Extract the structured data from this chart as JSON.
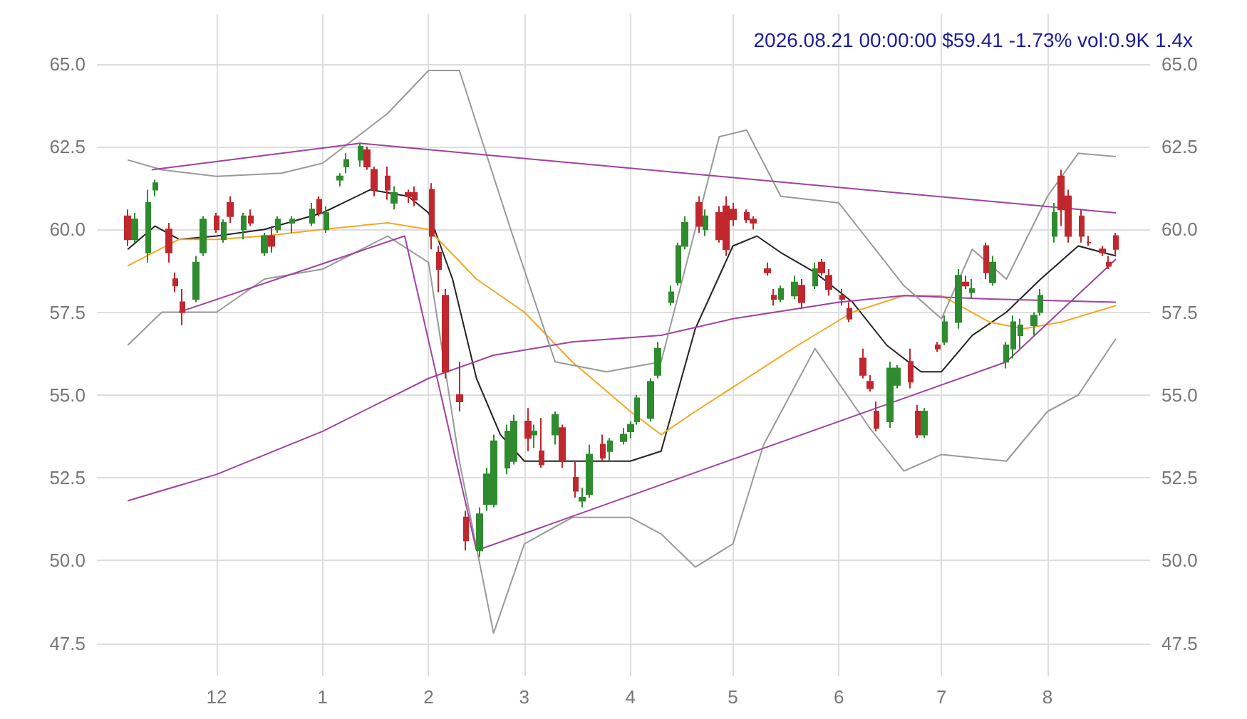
{
  "chart_data": {
    "type": "candlestick",
    "title": "2026.08.21 00:00:00 $59.41 -1.73% vol:0.9K 1.4x",
    "x": [
      "2025-11-05",
      "2025-11-07",
      "2025-11-11",
      "2025-11-13",
      "2025-11-17",
      "2025-11-19",
      "2025-11-21",
      "2025-11-25",
      "2025-11-27",
      "2025-12-01",
      "2025-12-03",
      "2025-12-05",
      "2025-12-09",
      "2025-12-11",
      "2025-12-15",
      "2025-12-17",
      "2025-12-19",
      "2025-12-23",
      "2025-12-29",
      "2025-12-31",
      "2026-01-02",
      "2026-01-06",
      "2026-01-08",
      "2026-01-12",
      "2026-01-14",
      "2026-01-16",
      "2026-01-20",
      "2026-01-22",
      "2026-01-26",
      "2026-01-28",
      "2026-02-02",
      "2026-02-04",
      "2026-02-06",
      "2026-02-10",
      "2026-02-12",
      "2026-02-16",
      "2026-02-18",
      "2026-02-20",
      "2026-02-24",
      "2026-02-26",
      "2026-03-02",
      "2026-03-04",
      "2026-03-06",
      "2026-03-10",
      "2026-03-12",
      "2026-03-16",
      "2026-03-18",
      "2026-03-20",
      "2026-03-24",
      "2026-03-26",
      "2026-03-30",
      "2026-04-01",
      "2026-04-03",
      "2026-04-07",
      "2026-04-09",
      "2026-04-13",
      "2026-04-15",
      "2026-04-17",
      "2026-04-21",
      "2026-04-23",
      "2026-04-27",
      "2026-04-29",
      "2026-05-01",
      "2026-05-05",
      "2026-05-07",
      "2026-05-11",
      "2026-05-13",
      "2026-05-15",
      "2026-05-19",
      "2026-05-21",
      "2026-05-25",
      "2026-05-27",
      "2026-05-29",
      "2026-06-02",
      "2026-06-04",
      "2026-06-08",
      "2026-06-10",
      "2026-06-12",
      "2026-06-16",
      "2026-06-18",
      "2026-06-22",
      "2026-06-24",
      "2026-06-26",
      "2026-06-30",
      "2026-07-02",
      "2026-07-06",
      "2026-07-08",
      "2026-07-10",
      "2026-07-14",
      "2026-07-16",
      "2026-07-20",
      "2026-07-22",
      "2026-07-24",
      "2026-07-28",
      "2026-07-30",
      "2026-08-03",
      "2026-08-05",
      "2026-08-07",
      "2026-08-11",
      "2026-08-13",
      "2026-08-17",
      "2026-08-19",
      "2026-08-21"
    ],
    "ohlc": [
      [
        60.4,
        60.6,
        59.5,
        59.7
      ],
      [
        59.7,
        60.5,
        59.6,
        60.3
      ],
      [
        59.3,
        61.2,
        59.0,
        60.8
      ],
      [
        61.2,
        61.5,
        61.0,
        61.4
      ],
      [
        60.0,
        60.2,
        59.0,
        59.3
      ],
      [
        58.5,
        58.7,
        58.1,
        58.3
      ],
      [
        57.8,
        58.2,
        57.1,
        57.5
      ],
      [
        57.9,
        59.2,
        57.8,
        59.0
      ],
      [
        59.3,
        60.4,
        59.2,
        60.3
      ],
      [
        60.4,
        60.5,
        59.9,
        60.0
      ],
      [
        59.7,
        60.3,
        59.6,
        60.2
      ],
      [
        60.8,
        61.0,
        60.2,
        60.4
      ],
      [
        60.0,
        60.5,
        59.7,
        60.4
      ],
      [
        60.4,
        60.6,
        60.1,
        60.2
      ],
      [
        59.3,
        59.9,
        59.2,
        59.8
      ],
      [
        59.8,
        60.1,
        59.3,
        59.5
      ],
      [
        60.0,
        60.4,
        59.9,
        60.3
      ],
      [
        60.2,
        60.4,
        59.9,
        60.3
      ],
      [
        60.2,
        60.8,
        60.1,
        60.6
      ],
      [
        60.9,
        61.0,
        60.4,
        60.5
      ],
      [
        60.0,
        60.7,
        59.9,
        60.5
      ],
      [
        61.5,
        61.7,
        61.3,
        61.6
      ],
      [
        61.9,
        62.3,
        61.7,
        62.1
      ],
      [
        62.1,
        62.6,
        61.9,
        62.5
      ],
      [
        62.4,
        62.5,
        61.8,
        61.9
      ],
      [
        61.8,
        61.9,
        61.0,
        61.2
      ],
      [
        61.6,
        61.9,
        60.9,
        61.2
      ],
      [
        60.8,
        61.3,
        60.6,
        61.1
      ],
      [
        61.1,
        61.2,
        60.8,
        61.0
      ],
      [
        61.1,
        61.3,
        60.7,
        60.9
      ],
      [
        61.2,
        61.4,
        59.4,
        59.8
      ],
      [
        59.3,
        59.5,
        58.1,
        58.8
      ],
      [
        58.0,
        58.2,
        55.5,
        55.7
      ],
      [
        55.0,
        56.0,
        54.5,
        54.8
      ],
      [
        51.3,
        51.5,
        50.3,
        50.6
      ],
      [
        50.3,
        51.6,
        50.1,
        51.4
      ],
      [
        51.7,
        52.8,
        51.5,
        52.6
      ],
      [
        51.7,
        53.8,
        51.6,
        53.6
      ],
      [
        52.8,
        54.1,
        52.6,
        53.9
      ],
      [
        53.0,
        54.4,
        52.9,
        54.2
      ],
      [
        54.2,
        54.6,
        53.3,
        53.7
      ],
      [
        53.8,
        54.1,
        53.4,
        53.9
      ],
      [
        53.3,
        54.3,
        52.8,
        52.9
      ],
      [
        53.8,
        54.5,
        53.5,
        54.4
      ],
      [
        54.0,
        54.1,
        52.8,
        53.0
      ],
      [
        52.5,
        53.0,
        51.9,
        52.1
      ],
      [
        51.8,
        52.2,
        51.6,
        51.9
      ],
      [
        52.0,
        53.5,
        51.9,
        53.2
      ],
      [
        53.5,
        53.8,
        53.0,
        53.1
      ],
      [
        53.3,
        53.7,
        53.0,
        53.6
      ],
      [
        53.6,
        54.0,
        53.5,
        53.8
      ],
      [
        53.9,
        54.2,
        53.7,
        54.1
      ],
      [
        54.2,
        55.0,
        54.1,
        54.9
      ],
      [
        54.3,
        55.5,
        54.2,
        55.4
      ],
      [
        55.6,
        56.6,
        55.5,
        56.4
      ],
      [
        57.8,
        58.3,
        57.7,
        58.1
      ],
      [
        58.4,
        59.6,
        58.3,
        59.5
      ],
      [
        59.5,
        60.4,
        59.4,
        60.2
      ],
      [
        60.8,
        61.0,
        59.9,
        60.1
      ],
      [
        60.0,
        60.6,
        59.8,
        60.4
      ],
      [
        60.5,
        60.7,
        59.6,
        59.7
      ],
      [
        60.7,
        61.0,
        59.2,
        59.4
      ],
      [
        60.6,
        60.8,
        60.1,
        60.3
      ],
      [
        60.5,
        60.6,
        60.2,
        60.3
      ],
      [
        60.3,
        60.4,
        60.0,
        60.2
      ],
      [
        58.8,
        59.0,
        58.6,
        58.7
      ],
      [
        58.0,
        58.2,
        57.7,
        57.9
      ],
      [
        57.9,
        58.3,
        57.8,
        58.2
      ],
      [
        58.0,
        58.6,
        57.9,
        58.4
      ],
      [
        58.3,
        58.5,
        57.6,
        57.8
      ],
      [
        58.3,
        59.0,
        58.2,
        58.8
      ],
      [
        59.0,
        59.1,
        58.6,
        58.7
      ],
      [
        58.6,
        58.8,
        58.0,
        58.2
      ],
      [
        58.0,
        58.2,
        57.7,
        57.9
      ],
      [
        57.6,
        57.8,
        57.2,
        57.3
      ],
      [
        56.1,
        56.4,
        55.5,
        55.6
      ],
      [
        55.4,
        55.6,
        55.1,
        55.2
      ],
      [
        54.5,
        54.8,
        53.9,
        54.0
      ],
      [
        54.2,
        56.0,
        54.0,
        55.8
      ],
      [
        55.3,
        55.9,
        55.2,
        55.8
      ],
      [
        56.0,
        56.4,
        55.2,
        55.4
      ],
      [
        54.5,
        54.7,
        53.7,
        53.8
      ],
      [
        53.8,
        54.6,
        53.7,
        54.5
      ],
      [
        56.5,
        56.6,
        56.3,
        56.4
      ],
      [
        56.6,
        57.4,
        56.5,
        57.2
      ],
      [
        57.2,
        58.8,
        57.0,
        58.6
      ],
      [
        58.4,
        58.6,
        58.2,
        58.3
      ],
      [
        58.1,
        58.5,
        57.9,
        58.2
      ],
      [
        59.5,
        59.6,
        58.5,
        58.7
      ],
      [
        58.4,
        59.2,
        58.3,
        59.0
      ],
      [
        56.0,
        56.6,
        55.8,
        56.5
      ],
      [
        56.4,
        57.4,
        56.1,
        57.2
      ],
      [
        56.8,
        57.3,
        56.4,
        57.1
      ],
      [
        57.1,
        57.5,
        56.8,
        57.4
      ],
      [
        57.5,
        58.2,
        57.4,
        58.0
      ],
      [
        59.8,
        60.8,
        59.6,
        60.5
      ],
      [
        61.6,
        61.8,
        60.1,
        60.6
      ],
      [
        61.0,
        61.2,
        59.6,
        59.8
      ],
      [
        60.4,
        60.6,
        59.6,
        59.8
      ],
      [
        59.6,
        59.8,
        59.5,
        59.6
      ],
      [
        59.4,
        59.5,
        59.2,
        59.3
      ],
      [
        59.0,
        59.2,
        58.8,
        58.9
      ],
      [
        59.8,
        59.9,
        59.2,
        59.41
      ]
    ],
    "series": [
      {
        "type": "line",
        "color": "#222222",
        "x": [
          "2025-11-05",
          "2025-11-13",
          "2025-11-20",
          "2025-12-01",
          "2025-12-15",
          "2026-01-01",
          "2026-01-15",
          "2026-01-26",
          "2026-02-01",
          "2026-02-08",
          "2026-02-15",
          "2026-02-22",
          "2026-03-01",
          "2026-03-15",
          "2026-04-01",
          "2026-04-10",
          "2026-04-20",
          "2026-05-01",
          "2026-05-08",
          "2026-05-15",
          "2026-05-25",
          "2026-06-05",
          "2026-06-15",
          "2026-06-25",
          "2026-07-01",
          "2026-07-10",
          "2026-07-20",
          "2026-07-30",
          "2026-08-10",
          "2026-08-21"
        ],
        "values": [
          59.4,
          60.1,
          59.7,
          59.8,
          60.0,
          60.5,
          61.2,
          61.0,
          60.5,
          58.5,
          55.5,
          53.8,
          53.0,
          53.0,
          53.0,
          53.3,
          57.0,
          59.5,
          59.8,
          59.3,
          58.7,
          57.8,
          56.5,
          55.7,
          55.7,
          56.8,
          57.5,
          58.5,
          59.5,
          59.2
        ]
      },
      {
        "type": "line",
        "color": "#f5a623",
        "x": [
          "2025-11-05",
          "2025-11-20",
          "2025-12-01",
          "2025-12-15",
          "2026-01-01",
          "2026-01-20",
          "2026-02-01",
          "2026-02-15",
          "2026-03-01",
          "2026-03-15",
          "2026-04-01",
          "2026-04-10",
          "2026-04-20",
          "2026-05-05",
          "2026-05-20",
          "2026-06-05",
          "2026-06-20",
          "2026-07-01",
          "2026-07-15",
          "2026-07-25",
          "2026-08-05",
          "2026-08-21"
        ],
        "values": [
          58.9,
          59.7,
          59.7,
          59.8,
          60.0,
          60.2,
          60.0,
          58.5,
          57.5,
          56.0,
          54.5,
          53.8,
          54.5,
          55.5,
          56.5,
          57.5,
          58.0,
          58.0,
          57.2,
          57.0,
          57.2,
          57.7
        ]
      },
      {
        "type": "line",
        "color": "#a040a0",
        "x": [
          "2025-11-05",
          "2025-12-01",
          "2026-01-01",
          "2026-02-01",
          "2026-02-20",
          "2026-03-15",
          "2026-04-10",
          "2026-05-01",
          "2026-06-01",
          "2026-06-20",
          "2026-07-15",
          "2026-08-21"
        ],
        "values": [
          51.8,
          52.6,
          53.9,
          55.5,
          56.2,
          56.6,
          56.8,
          57.3,
          57.8,
          58.0,
          57.9,
          57.8
        ]
      },
      {
        "type": "line",
        "color": "#999999",
        "x": [
          "2025-11-05",
          "2025-11-15",
          "2025-12-01",
          "2025-12-20",
          "2026-01-01",
          "2026-01-20",
          "2026-02-01",
          "2026-02-10",
          "2026-02-25",
          "2026-03-10",
          "2026-03-25",
          "2026-04-10",
          "2026-04-20",
          "2026-04-27",
          "2026-05-05",
          "2026-05-15",
          "2026-06-01",
          "2026-06-20",
          "2026-07-01",
          "2026-07-10",
          "2026-07-20",
          "2026-08-01",
          "2026-08-10",
          "2026-08-21"
        ],
        "values": [
          62.1,
          61.8,
          61.6,
          61.7,
          62.0,
          63.5,
          64.8,
          64.8,
          60.0,
          56.0,
          55.7,
          56.0,
          60.0,
          62.8,
          63.0,
          61.0,
          60.8,
          58.3,
          57.3,
          59.4,
          58.5,
          61.0,
          62.3,
          62.2
        ]
      },
      {
        "type": "line",
        "color": "#999999",
        "x": [
          "2025-11-05",
          "2025-11-15",
          "2025-12-01",
          "2025-12-15",
          "2026-01-01",
          "2026-01-20",
          "2026-02-01",
          "2026-02-10",
          "2026-02-20",
          "2026-03-01",
          "2026-03-15",
          "2026-04-01",
          "2026-04-10",
          "2026-04-20",
          "2026-05-01",
          "2026-05-10",
          "2026-05-25",
          "2026-06-10",
          "2026-06-20",
          "2026-07-01",
          "2026-07-20",
          "2026-08-01",
          "2026-08-10",
          "2026-08-21"
        ],
        "values": [
          56.5,
          57.5,
          57.5,
          58.5,
          58.8,
          59.8,
          59.0,
          53.0,
          47.8,
          50.5,
          51.3,
          51.3,
          50.8,
          49.8,
          50.5,
          53.5,
          56.4,
          54.0,
          52.7,
          53.2,
          53.0,
          54.5,
          55.0,
          56.7
        ]
      },
      {
        "type": "line",
        "color": "#a040a0",
        "x": [
          "2025-11-12",
          "2026-01-12",
          "2026-08-21"
        ],
        "values": [
          61.8,
          62.6,
          60.5
        ]
      },
      {
        "type": "line",
        "color": "#a040a0",
        "x": [
          "2025-11-20",
          "2026-01-25",
          "2026-02-15"
        ],
        "values": [
          57.5,
          59.8,
          50.3
        ]
      },
      {
        "type": "line",
        "color": "#a040a0",
        "x": [
          "2026-02-15",
          "2026-07-20",
          "2026-08-21"
        ],
        "values": [
          50.3,
          56.0,
          59.1
        ]
      }
    ],
    "xlim": [
      "2025-10-27",
      "2026-08-31"
    ],
    "xticks": [
      {
        "value": "2025-12-01",
        "label": "12"
      },
      {
        "value": "2026-01-01",
        "label": "1"
      },
      {
        "value": "2026-02-01",
        "label": "2"
      },
      {
        "value": "2026-03-01",
        "label": "3"
      },
      {
        "value": "2026-04-01",
        "label": "4"
      },
      {
        "value": "2026-05-01",
        "label": "5"
      },
      {
        "value": "2026-06-01",
        "label": "6"
      },
      {
        "value": "2026-07-01",
        "label": "7"
      },
      {
        "value": "2026-08-01",
        "label": "8"
      }
    ],
    "ylim": [
      46.5,
      66.5
    ],
    "yticks": [
      47.5,
      {
        "value": 50,
        "label": "50.0"
      },
      52.5,
      {
        "value": 55,
        "label": "55.0"
      },
      57.5,
      {
        "value": 60,
        "label": "60.0"
      },
      62.5,
      {
        "value": 65,
        "label": "65.0"
      }
    ],
    "y2lim": [
      46.5,
      66.5
    ],
    "y2ticks": [
      47.5,
      {
        "value": 50,
        "label": "50.0"
      },
      52.5,
      {
        "value": 55,
        "label": "55.0"
      },
      57.5,
      {
        "value": 60,
        "label": "60.0"
      },
      62.5,
      {
        "value": 65,
        "label": "65.0"
      }
    ],
    "grid": true,
    "marker": "none"
  }
}
